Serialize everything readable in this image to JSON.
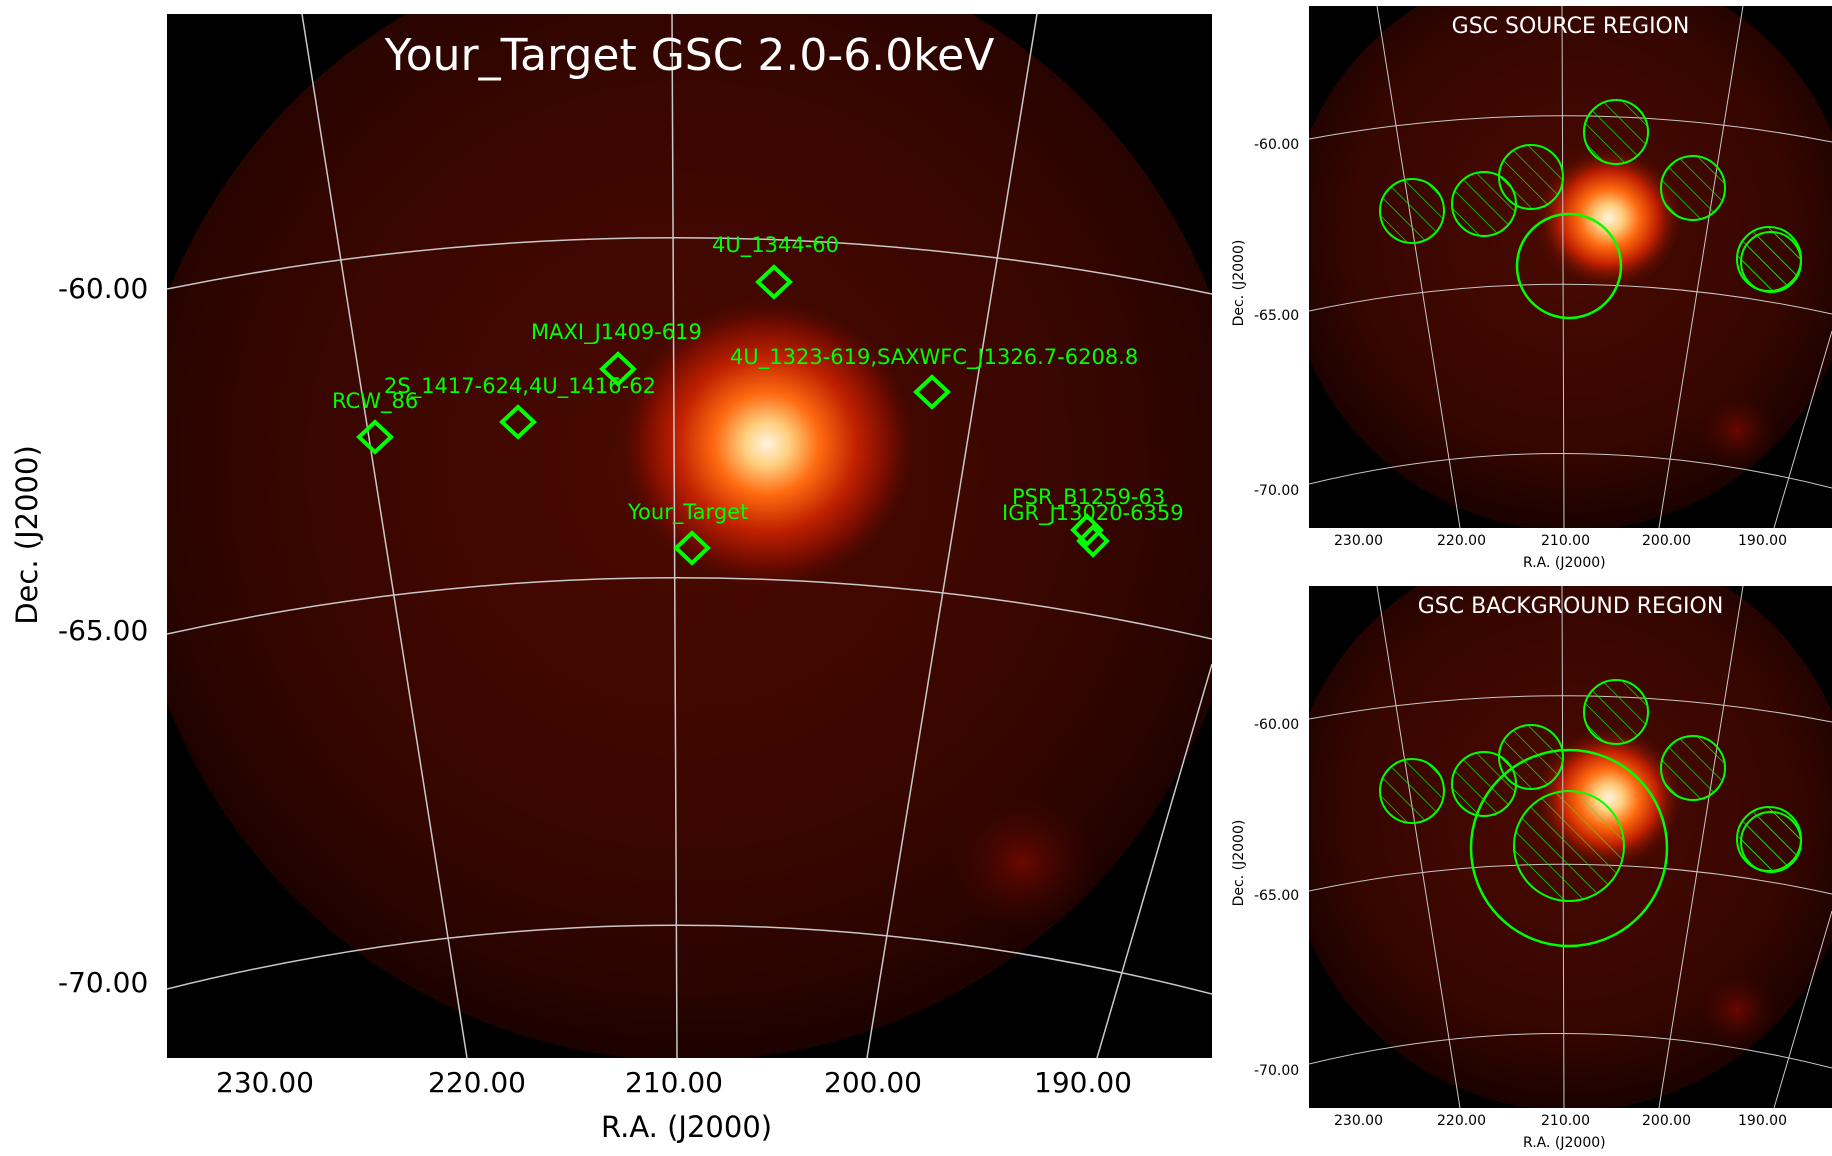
{
  "main_panel": {
    "title": "Your_Target GSC 2.0-6.0keV",
    "xlabel": "R.A. (J2000)",
    "ylabel": "Dec. (J2000)",
    "x_ticks": [
      "230.00",
      "220.00",
      "210.00",
      "200.00",
      "190.00"
    ],
    "y_ticks": [
      "-60.00",
      "-65.00",
      "-70.00"
    ],
    "sources": [
      {
        "name": "4U_1344-60"
      },
      {
        "name": "MAXI_J1409-619"
      },
      {
        "name": "4U_1323-619,SAXWFC_J1326.7-6208.8"
      },
      {
        "name": "2S_1417-624,4U_1416-62"
      },
      {
        "name": "RCW_86"
      },
      {
        "name": "Your_Target"
      },
      {
        "name": "PSR_B1259-63"
      },
      {
        "name": "IGR_J13020-6359"
      }
    ]
  },
  "source_panel": {
    "title": "GSC SOURCE REGION",
    "xlabel": "R.A. (J2000)",
    "ylabel": "Dec. (J2000)",
    "x_ticks": [
      "230.00",
      "220.00",
      "210.00",
      "200.00",
      "190.00"
    ],
    "y_ticks": [
      "-60.00",
      "-65.00",
      "-70.00"
    ]
  },
  "background_panel": {
    "title": "GSC BACKGROUND REGION",
    "xlabel": "R.A. (J2000)",
    "ylabel": "Dec. (J2000)",
    "x_ticks": [
      "230.00",
      "220.00",
      "210.00",
      "200.00",
      "190.00"
    ],
    "y_ticks": [
      "-60.00",
      "-65.00",
      "-70.00"
    ]
  },
  "colors": {
    "marker": "#00ff00",
    "grid": "#c8c8c8",
    "background": "#000000"
  }
}
